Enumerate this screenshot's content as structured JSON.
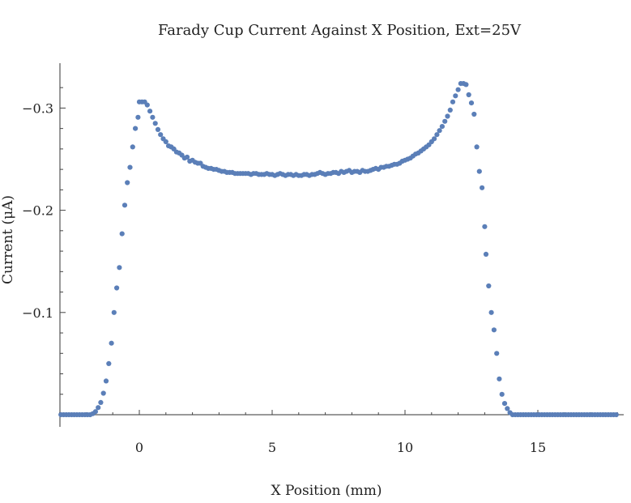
{
  "chart_data": {
    "type": "scatter",
    "title": "Farady Cup Current Against  X Position, Ext=25V",
    "xlabel": "X Position (mm)",
    "ylabel": "Current (μA)",
    "xlim": [
      -3,
      18
    ],
    "ylim": [
      0.0,
      -0.34
    ],
    "x_ticks": [
      0,
      5,
      10,
      15
    ],
    "x_tick_labels": [
      "0",
      "5",
      "10",
      "15"
    ],
    "y_ticks": [
      -0.1,
      -0.2,
      -0.3
    ],
    "y_tick_labels": [
      "−0.1",
      "−0.2",
      "−0.3"
    ],
    "grid": false,
    "marker_color": "#5b7fb8",
    "series": [
      {
        "points": [
          [
            -2.95,
            0.0
          ],
          [
            -2.85,
            0.0
          ],
          [
            -2.75,
            0.0
          ],
          [
            -2.65,
            0.0
          ],
          [
            -2.55,
            0.0
          ],
          [
            -2.45,
            0.0
          ],
          [
            -2.35,
            0.0
          ],
          [
            -2.25,
            0.0
          ],
          [
            -2.15,
            0.0
          ],
          [
            -2.05,
            0.0
          ],
          [
            -1.95,
            0.0
          ],
          [
            -1.85,
            0.0
          ],
          [
            -1.75,
            -0.001
          ],
          [
            -1.65,
            -0.003
          ],
          [
            -1.55,
            -0.007
          ],
          [
            -1.45,
            -0.012
          ],
          [
            -1.35,
            -0.021
          ],
          [
            -1.25,
            -0.033
          ],
          [
            -1.15,
            -0.05
          ],
          [
            -1.05,
            -0.07
          ],
          [
            -0.95,
            -0.1
          ],
          [
            -0.85,
            -0.124
          ],
          [
            -0.75,
            -0.144
          ],
          [
            -0.65,
            -0.177
          ],
          [
            -0.55,
            -0.205
          ],
          [
            -0.45,
            -0.227
          ],
          [
            -0.35,
            -0.242
          ],
          [
            -0.25,
            -0.262
          ],
          [
            -0.15,
            -0.28
          ],
          [
            -0.05,
            -0.291
          ],
          [
            0.0,
            -0.306
          ],
          [
            0.1,
            -0.306
          ],
          [
            0.2,
            -0.306
          ],
          [
            0.3,
            -0.303
          ],
          [
            0.4,
            -0.297
          ],
          [
            0.5,
            -0.291
          ],
          [
            0.6,
            -0.285
          ],
          [
            0.7,
            -0.279
          ],
          [
            0.8,
            -0.274
          ],
          [
            0.9,
            -0.27
          ],
          [
            1.0,
            -0.267
          ],
          [
            1.1,
            -0.263
          ],
          [
            1.2,
            -0.262
          ],
          [
            1.3,
            -0.26
          ],
          [
            1.4,
            -0.257
          ],
          [
            1.5,
            -0.256
          ],
          [
            1.6,
            -0.254
          ],
          [
            1.7,
            -0.251
          ],
          [
            1.8,
            -0.252
          ],
          [
            1.9,
            -0.248
          ],
          [
            2.0,
            -0.249
          ],
          [
            2.1,
            -0.247
          ],
          [
            2.2,
            -0.246
          ],
          [
            2.3,
            -0.246
          ],
          [
            2.4,
            -0.243
          ],
          [
            2.5,
            -0.242
          ],
          [
            2.6,
            -0.241
          ],
          [
            2.7,
            -0.241
          ],
          [
            2.8,
            -0.24
          ],
          [
            2.9,
            -0.24
          ],
          [
            3.0,
            -0.239
          ],
          [
            3.1,
            -0.238
          ],
          [
            3.2,
            -0.238
          ],
          [
            3.3,
            -0.237
          ],
          [
            3.4,
            -0.237
          ],
          [
            3.5,
            -0.237
          ],
          [
            3.6,
            -0.236
          ],
          [
            3.7,
            -0.236
          ],
          [
            3.8,
            -0.236
          ],
          [
            3.9,
            -0.236
          ],
          [
            4.0,
            -0.236
          ],
          [
            4.1,
            -0.236
          ],
          [
            4.2,
            -0.235
          ],
          [
            4.3,
            -0.236
          ],
          [
            4.4,
            -0.236
          ],
          [
            4.5,
            -0.235
          ],
          [
            4.6,
            -0.235
          ],
          [
            4.7,
            -0.235
          ],
          [
            4.8,
            -0.236
          ],
          [
            4.9,
            -0.235
          ],
          [
            5.0,
            -0.235
          ],
          [
            5.1,
            -0.234
          ],
          [
            5.2,
            -0.235
          ],
          [
            5.3,
            -0.236
          ],
          [
            5.4,
            -0.235
          ],
          [
            5.5,
            -0.234
          ],
          [
            5.6,
            -0.235
          ],
          [
            5.7,
            -0.235
          ],
          [
            5.8,
            -0.234
          ],
          [
            5.9,
            -0.235
          ],
          [
            6.0,
            -0.234
          ],
          [
            6.1,
            -0.234
          ],
          [
            6.2,
            -0.235
          ],
          [
            6.3,
            -0.235
          ],
          [
            6.4,
            -0.234
          ],
          [
            6.5,
            -0.235
          ],
          [
            6.6,
            -0.235
          ],
          [
            6.7,
            -0.236
          ],
          [
            6.8,
            -0.237
          ],
          [
            6.9,
            -0.236
          ],
          [
            7.0,
            -0.235
          ],
          [
            7.1,
            -0.236
          ],
          [
            7.2,
            -0.236
          ],
          [
            7.3,
            -0.237
          ],
          [
            7.4,
            -0.237
          ],
          [
            7.5,
            -0.236
          ],
          [
            7.6,
            -0.238
          ],
          [
            7.7,
            -0.237
          ],
          [
            7.8,
            -0.238
          ],
          [
            7.9,
            -0.239
          ],
          [
            8.0,
            -0.237
          ],
          [
            8.1,
            -0.238
          ],
          [
            8.2,
            -0.238
          ],
          [
            8.3,
            -0.237
          ],
          [
            8.4,
            -0.239
          ],
          [
            8.5,
            -0.238
          ],
          [
            8.6,
            -0.238
          ],
          [
            8.7,
            -0.239
          ],
          [
            8.8,
            -0.24
          ],
          [
            8.9,
            -0.241
          ],
          [
            9.0,
            -0.24
          ],
          [
            9.1,
            -0.242
          ],
          [
            9.2,
            -0.242
          ],
          [
            9.3,
            -0.243
          ],
          [
            9.4,
            -0.243
          ],
          [
            9.5,
            -0.244
          ],
          [
            9.6,
            -0.245
          ],
          [
            9.7,
            -0.245
          ],
          [
            9.8,
            -0.246
          ],
          [
            9.9,
            -0.248
          ],
          [
            10.0,
            -0.249
          ],
          [
            10.1,
            -0.25
          ],
          [
            10.2,
            -0.251
          ],
          [
            10.3,
            -0.253
          ],
          [
            10.4,
            -0.255
          ],
          [
            10.5,
            -0.256
          ],
          [
            10.6,
            -0.258
          ],
          [
            10.7,
            -0.26
          ],
          [
            10.8,
            -0.262
          ],
          [
            10.9,
            -0.264
          ],
          [
            11.0,
            -0.267
          ],
          [
            11.1,
            -0.27
          ],
          [
            11.2,
            -0.274
          ],
          [
            11.3,
            -0.278
          ],
          [
            11.4,
            -0.282
          ],
          [
            11.5,
            -0.287
          ],
          [
            11.6,
            -0.292
          ],
          [
            11.7,
            -0.298
          ],
          [
            11.8,
            -0.306
          ],
          [
            11.9,
            -0.312
          ],
          [
            12.0,
            -0.318
          ],
          [
            12.1,
            -0.324
          ],
          [
            12.2,
            -0.324
          ],
          [
            12.3,
            -0.323
          ],
          [
            12.4,
            -0.313
          ],
          [
            12.5,
            -0.305
          ],
          [
            12.6,
            -0.294
          ],
          [
            12.7,
            -0.262
          ],
          [
            12.8,
            -0.238
          ],
          [
            12.9,
            -0.222
          ],
          [
            13.0,
            -0.184
          ],
          [
            13.05,
            -0.157
          ],
          [
            13.15,
            -0.126
          ],
          [
            13.25,
            -0.1
          ],
          [
            13.35,
            -0.083
          ],
          [
            13.45,
            -0.06
          ],
          [
            13.55,
            -0.035
          ],
          [
            13.65,
            -0.02
          ],
          [
            13.75,
            -0.011
          ],
          [
            13.85,
            -0.006
          ],
          [
            13.95,
            -0.002
          ],
          [
            14.05,
            0.0
          ],
          [
            14.15,
            0.0
          ],
          [
            14.25,
            0.0
          ],
          [
            14.35,
            0.0
          ],
          [
            14.45,
            0.0
          ],
          [
            14.55,
            0.0
          ],
          [
            14.65,
            0.0
          ],
          [
            14.75,
            0.0
          ],
          [
            14.85,
            0.0
          ],
          [
            14.95,
            0.0
          ],
          [
            15.05,
            0.0
          ],
          [
            15.15,
            0.0
          ],
          [
            15.25,
            0.0
          ],
          [
            15.35,
            0.0
          ],
          [
            15.45,
            0.0
          ],
          [
            15.55,
            0.0
          ],
          [
            15.65,
            0.0
          ],
          [
            15.75,
            0.0
          ],
          [
            15.85,
            0.0
          ],
          [
            15.95,
            0.0
          ],
          [
            16.05,
            0.0
          ],
          [
            16.15,
            0.0
          ],
          [
            16.25,
            0.0
          ],
          [
            16.35,
            0.0
          ],
          [
            16.45,
            0.0
          ],
          [
            16.55,
            0.0
          ],
          [
            16.65,
            0.0
          ],
          [
            16.75,
            0.0
          ],
          [
            16.85,
            0.0
          ],
          [
            16.95,
            0.0
          ],
          [
            17.05,
            0.0
          ],
          [
            17.15,
            0.0
          ],
          [
            17.25,
            0.0
          ],
          [
            17.35,
            0.0
          ],
          [
            17.45,
            0.0
          ],
          [
            17.55,
            0.0
          ],
          [
            17.65,
            0.0
          ],
          [
            17.75,
            0.0
          ],
          [
            17.85,
            0.0
          ],
          [
            17.95,
            0.0
          ]
        ]
      }
    ]
  }
}
